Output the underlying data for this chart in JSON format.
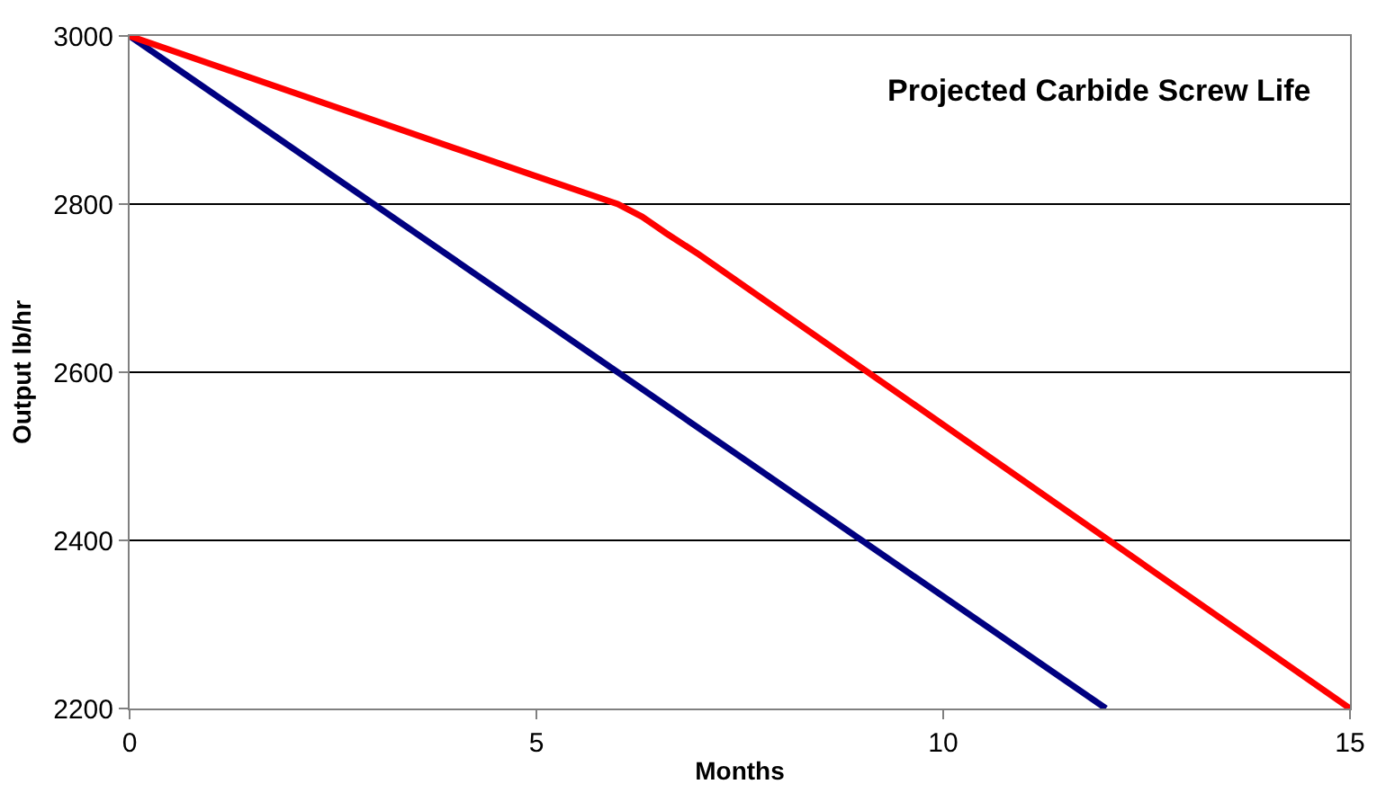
{
  "chart_data": {
    "type": "line",
    "title": "Projected Carbide Screw Life",
    "xlabel": "Months",
    "ylabel": "Output lb/hr",
    "series": [
      {
        "color": "#000080",
        "x": [
          0,
          12
        ],
        "values": [
          3000,
          2200
        ]
      },
      {
        "color": "#ff0000",
        "x": [
          0,
          5,
          6,
          6.3,
          6.6,
          7,
          15
        ],
        "values": [
          3000,
          2833,
          2800,
          2785,
          2765,
          2740,
          2200
        ]
      }
    ],
    "xlim": [
      0,
      15
    ],
    "xticks": [
      0,
      5,
      10,
      15
    ],
    "ylim": [
      2200,
      3000
    ],
    "yticks": [
      2200,
      2400,
      2600,
      2800,
      3000
    ],
    "grid": "y",
    "marker": "none",
    "line_style": "solid"
  }
}
